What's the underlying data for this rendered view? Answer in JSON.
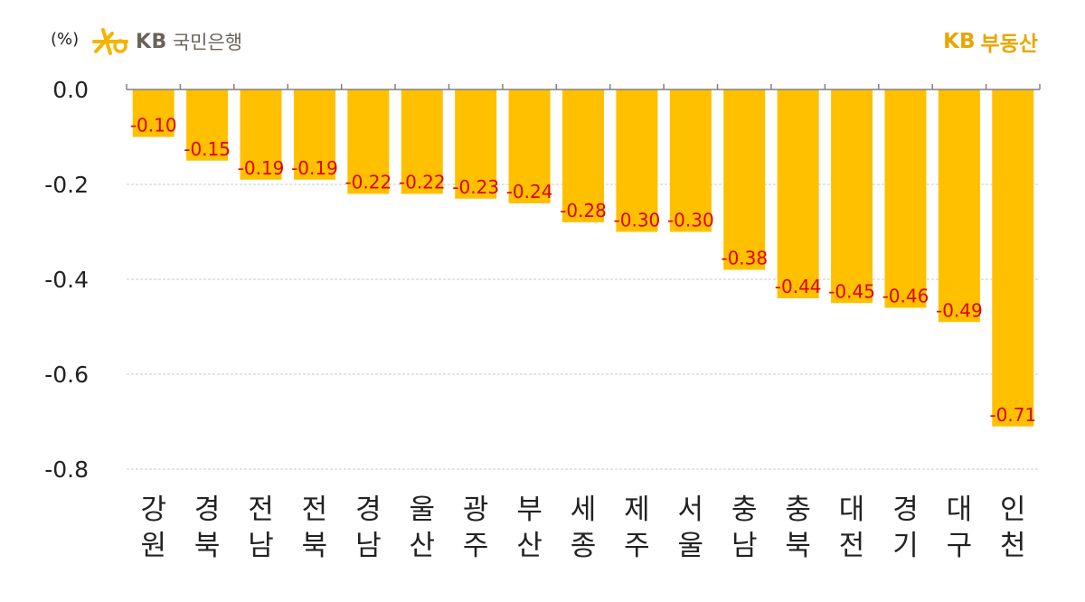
{
  "header": {
    "unit": "(%)",
    "left_brand_kb": "KB",
    "left_brand_bank": "국민은행",
    "right_brand_kb": "KB",
    "right_brand_name": "부동산"
  },
  "colors": {
    "bar": "#FFC000",
    "label": "#E00000",
    "grid": "#C8C8C8",
    "axis": "#808080",
    "logo": "#F5B400"
  },
  "chart_data": {
    "type": "bar",
    "title": "",
    "ylabel": "(%)",
    "xlabel": "",
    "ylim": [
      -0.8,
      0.0
    ],
    "yticks": [
      0.0,
      -0.2,
      -0.4,
      -0.6,
      -0.8
    ],
    "ytick_labels": [
      "0.0",
      "-0.2",
      "-0.4",
      "-0.6",
      "-0.8"
    ],
    "grid": true,
    "categories": [
      [
        "강",
        "원"
      ],
      [
        "경",
        "북"
      ],
      [
        "전",
        "남"
      ],
      [
        "전",
        "북"
      ],
      [
        "경",
        "남"
      ],
      [
        "울",
        "산"
      ],
      [
        "광",
        "주"
      ],
      [
        "부",
        "산"
      ],
      [
        "세",
        "종"
      ],
      [
        "제",
        "주"
      ],
      [
        "서",
        "울"
      ],
      [
        "충",
        "남"
      ],
      [
        "충",
        "북"
      ],
      [
        "대",
        "전"
      ],
      [
        "경",
        "기"
      ],
      [
        "대",
        "구"
      ],
      [
        "인",
        "천"
      ]
    ],
    "values": [
      -0.1,
      -0.15,
      -0.19,
      -0.19,
      -0.22,
      -0.22,
      -0.23,
      -0.24,
      -0.28,
      -0.3,
      -0.3,
      -0.38,
      -0.44,
      -0.45,
      -0.46,
      -0.49,
      -0.71
    ],
    "value_labels": [
      "-0.10",
      "-0.15",
      "-0.19",
      "-0.19",
      "-0.22",
      "-0.22",
      "-0.23",
      "-0.24",
      "-0.28",
      "-0.30",
      "-0.30",
      "-0.38",
      "-0.44",
      "-0.45",
      "-0.46",
      "-0.49",
      "-0.71"
    ]
  }
}
